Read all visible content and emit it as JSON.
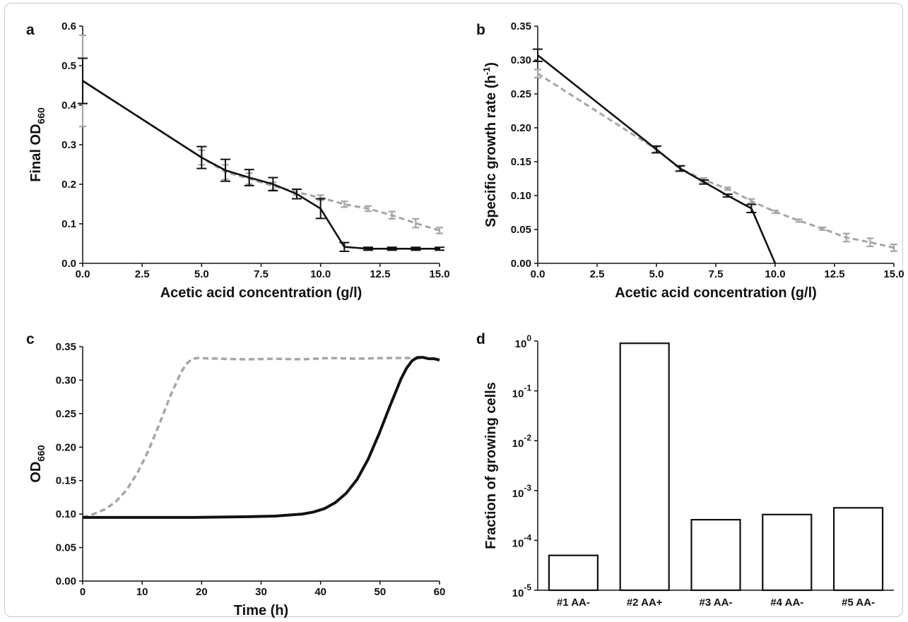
{
  "chart_data": [
    {
      "panel": "a",
      "type": "line",
      "xlabel": "Acetic acid concentration (g/l)",
      "ylabel": "Final OD",
      "ylabel_sub": "660",
      "xlim": [
        0,
        15
      ],
      "ylim": [
        0,
        0.65
      ],
      "xticks": [
        "0.0",
        "2.5",
        "5.0",
        "7.5",
        "10.0",
        "12.5",
        "15.0"
      ],
      "yticks": [
        "0.0",
        "0.1",
        "0.2",
        "0.3",
        "0.4",
        "0.5",
        "0.6"
      ],
      "series": [
        {
          "style": "solid",
          "color": "#111111",
          "x": [
            0,
            5,
            6,
            7,
            8,
            9,
            10,
            11,
            12,
            13,
            14,
            15
          ],
          "y": [
            0.5,
            0.29,
            0.255,
            0.235,
            0.217,
            0.19,
            0.15,
            0.045,
            0.04,
            0.04,
            0.04,
            0.04
          ],
          "err": [
            0.062,
            0.03,
            0.03,
            0.022,
            0.018,
            0.013,
            0.027,
            0.012,
            0.004,
            0.004,
            0.004,
            0.004
          ]
        },
        {
          "style": "dashed",
          "color": "#a6a6a6",
          "x": [
            0,
            5,
            6,
            7,
            8,
            9,
            10,
            11,
            12,
            13,
            14,
            15
          ],
          "y": [
            0.5,
            0.29,
            0.25,
            0.232,
            0.212,
            0.195,
            0.18,
            0.162,
            0.15,
            0.132,
            0.11,
            0.09
          ],
          "err": [
            0.125,
            0.02,
            0.02,
            0.015,
            0.01,
            0.008,
            0.007,
            0.008,
            0.007,
            0.01,
            0.012,
            0.008
          ]
        }
      ]
    },
    {
      "panel": "b",
      "type": "line",
      "xlabel": "Acetic acid concentration (g/l)",
      "ylabel": "Specific growth rate (h",
      "ylabel_sup": "-1",
      "ylabel_end": ")",
      "xlim": [
        0,
        15
      ],
      "ylim": [
        0,
        0.35
      ],
      "xticks": [
        "0.0",
        "2.5",
        "5.0",
        "7.5",
        "10.0",
        "12.5",
        "15.0"
      ],
      "yticks": [
        "0.00",
        "0.05",
        "0.10",
        "0.15",
        "0.20",
        "0.25",
        "0.30",
        "0.35"
      ],
      "series": [
        {
          "style": "solid",
          "color": "#111111",
          "x": [
            0,
            5,
            6,
            7,
            8,
            9,
            10
          ],
          "y": [
            0.307,
            0.168,
            0.14,
            0.12,
            0.1,
            0.081,
            0
          ],
          "err": [
            0.009,
            0.005,
            0.004,
            0.003,
            0.002,
            0.006,
            0
          ]
        },
        {
          "style": "dashed",
          "color": "#a6a6a6",
          "x": [
            0,
            5,
            6,
            7,
            8,
            9,
            10,
            11,
            12,
            13,
            14,
            15
          ],
          "y": [
            0.28,
            0.168,
            0.14,
            0.123,
            0.11,
            0.092,
            0.076,
            0.063,
            0.051,
            0.038,
            0.031,
            0.023
          ],
          "err": [
            0.006,
            0.004,
            0.003,
            0.003,
            0.002,
            0.003,
            0.002,
            0.002,
            0.002,
            0.006,
            0.006,
            0.005
          ]
        }
      ]
    },
    {
      "panel": "c",
      "type": "line",
      "xlabel": "Time (h)",
      "ylabel": "OD",
      "ylabel_sub": "660",
      "xlim": [
        0,
        65
      ],
      "ylim": [
        0,
        0.35
      ],
      "xticks": [
        "0",
        "10",
        "20",
        "30",
        "40",
        "50",
        "60"
      ],
      "yticks": [
        "0.00",
        "0.05",
        "0.10",
        "0.15",
        "0.20",
        "0.25",
        "0.30",
        "0.35"
      ],
      "series": [
        {
          "style": "solid",
          "color": "#111111",
          "x": [
            0,
            10,
            20,
            30,
            35,
            40,
            42,
            44,
            46,
            48,
            50,
            52,
            54,
            56,
            58,
            59,
            60,
            61,
            62,
            63,
            64,
            65
          ],
          "y": [
            0.095,
            0.095,
            0.095,
            0.096,
            0.097,
            0.1,
            0.103,
            0.108,
            0.117,
            0.131,
            0.152,
            0.182,
            0.22,
            0.262,
            0.302,
            0.318,
            0.329,
            0.334,
            0.334,
            0.332,
            0.332,
            0.33
          ]
        },
        {
          "style": "dashed",
          "color": "#a6a6a6",
          "x": [
            0,
            2,
            4,
            6,
            8,
            10,
            12,
            14,
            16,
            18,
            19,
            20,
            21,
            25,
            30,
            35,
            40,
            45,
            50,
            55,
            60,
            62
          ],
          "y": [
            0.095,
            0.1,
            0.107,
            0.118,
            0.136,
            0.162,
            0.195,
            0.235,
            0.277,
            0.313,
            0.325,
            0.332,
            0.333,
            0.332,
            0.331,
            0.332,
            0.331,
            0.333,
            0.332,
            0.333,
            0.333,
            0.332
          ]
        }
      ]
    },
    {
      "panel": "d",
      "type": "bar",
      "scale": "log",
      "ylabel": "Fraction of growing cells",
      "ylim": [
        1e-05,
        1
      ],
      "yticks": [
        {
          "base": "10",
          "exp": "0"
        },
        {
          "base": "10",
          "exp": "-1"
        },
        {
          "base": "10",
          "exp": "-2"
        },
        {
          "base": "10",
          "exp": "-3"
        },
        {
          "base": "10",
          "exp": "-4"
        },
        {
          "base": "10",
          "exp": "-5"
        }
      ],
      "categories": [
        "#1 AA-",
        "#2 AA+",
        "#3 AA-",
        "#4 AA-",
        "#5 AA-"
      ],
      "values": [
        5e-05,
        0.9,
        0.00026,
        0.00033,
        0.00045
      ]
    }
  ]
}
